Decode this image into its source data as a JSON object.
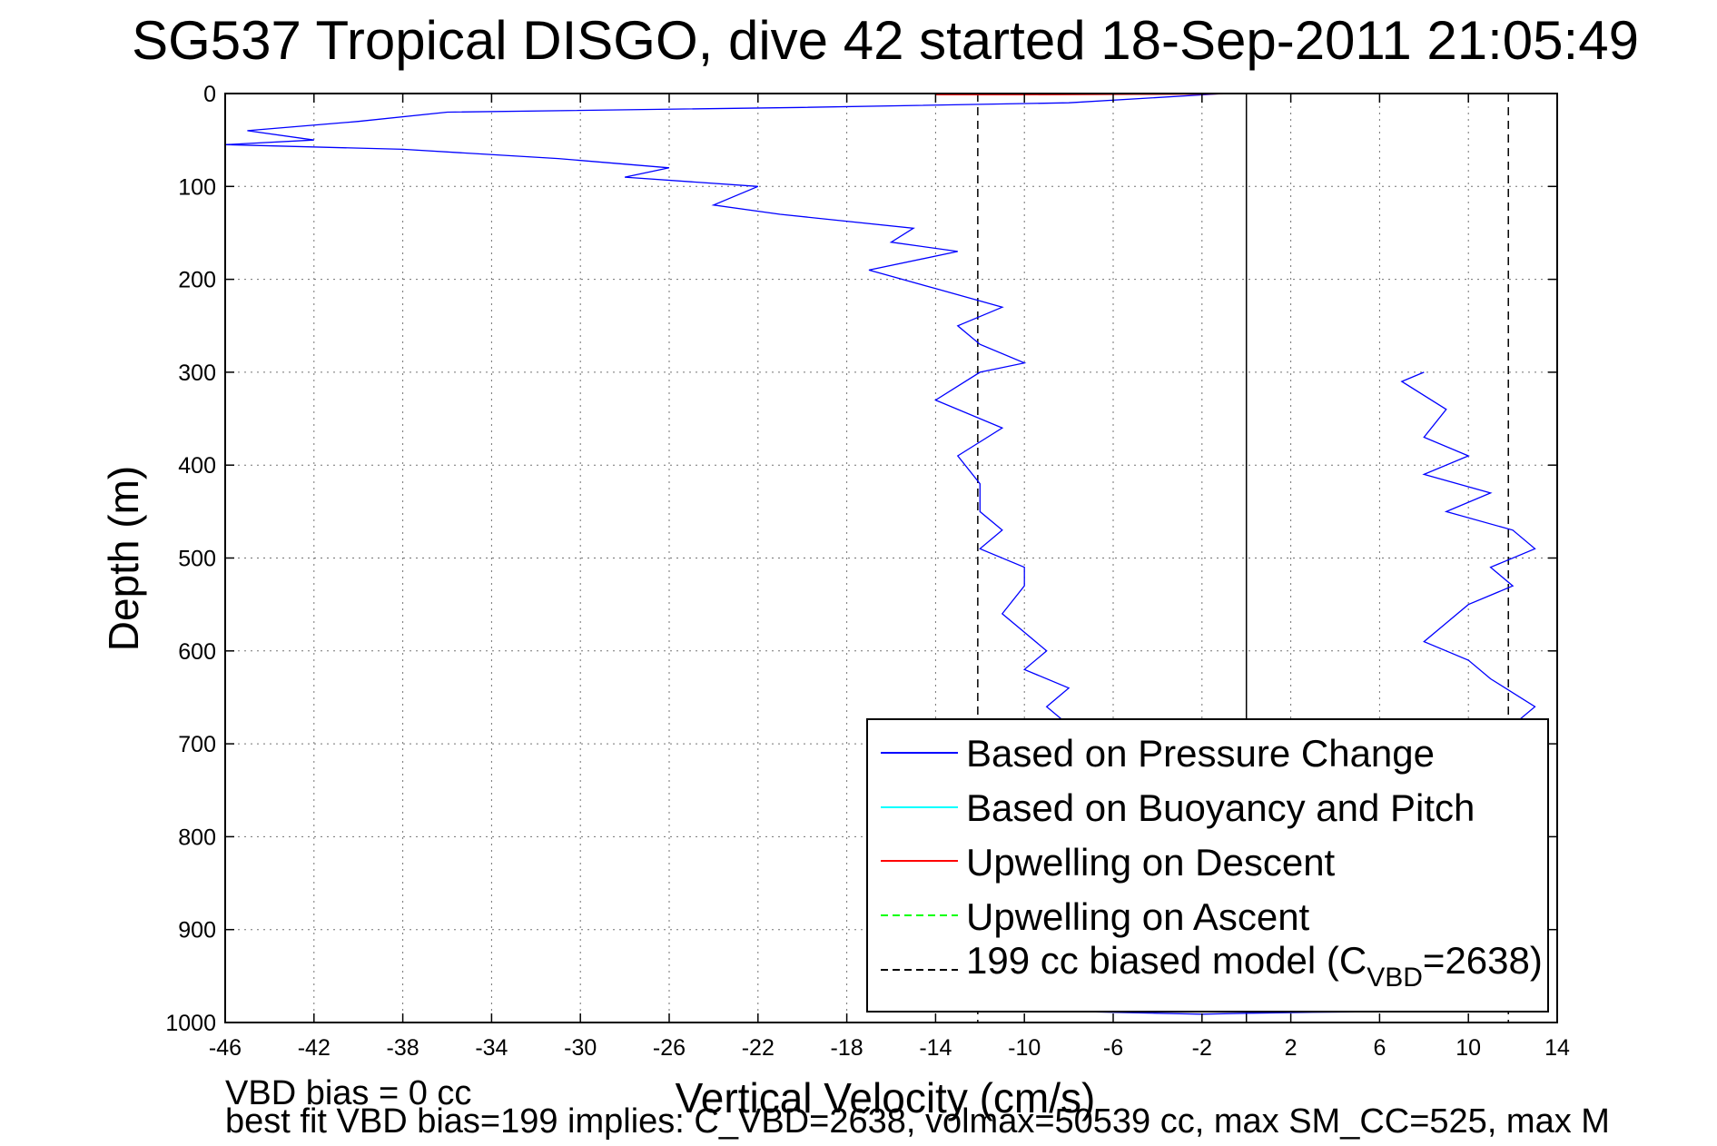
{
  "chart_data": {
    "type": "line",
    "title": "SG537 Tropical DISGO, dive 42 started 18-Sep-2011 21:05:49",
    "xlabel": "Vertical Velocity (cm/s)",
    "ylabel": "Depth (m)",
    "xlim": [
      -46,
      14
    ],
    "ylim": [
      1000,
      0
    ],
    "y_reversed": true,
    "grid": true,
    "legend_position": "bottom-right",
    "xticks": [
      "-46",
      "-42",
      "-38",
      "-34",
      "-30",
      "-26",
      "-22",
      "-18",
      "-14",
      "-10",
      "-6",
      "-2",
      "2",
      "6",
      "10",
      "14"
    ],
    "yticks": [
      "0",
      "100",
      "200",
      "300",
      "400",
      "500",
      "600",
      "700",
      "800",
      "900",
      "1000"
    ],
    "series": [
      {
        "name": "Based on Pressure Change",
        "color": "#0000ff",
        "descent": {
          "x": [
            -1,
            -8,
            -20,
            -36,
            -40,
            -45,
            -42,
            -46,
            -38,
            -31,
            -26,
            -28,
            -22,
            -24,
            -21,
            -15,
            -16,
            -13,
            -17,
            -14,
            -11,
            -13,
            -12,
            -10,
            -12,
            -14,
            -11,
            -13,
            -12,
            -12,
            -11,
            -12,
            -10,
            -10,
            -11,
            -10,
            -9,
            -10,
            -8,
            -9,
            -8
          ],
          "y": [
            0,
            10,
            15,
            20,
            30,
            40,
            50,
            55,
            60,
            70,
            80,
            90,
            100,
            120,
            130,
            145,
            160,
            170,
            190,
            210,
            230,
            250,
            270,
            290,
            300,
            330,
            360,
            390,
            420,
            450,
            470,
            490,
            510,
            530,
            560,
            580,
            600,
            620,
            640,
            660,
            680
          ]
        },
        "ascent": {
          "x": [
            8,
            7,
            9,
            8,
            10,
            8,
            11,
            9,
            12,
            13,
            11,
            12,
            10,
            9,
            8,
            10,
            11,
            13,
            12
          ],
          "y": [
            300,
            310,
            340,
            370,
            390,
            410,
            430,
            450,
            470,
            490,
            510,
            530,
            550,
            570,
            590,
            610,
            630,
            660,
            680
          ]
        },
        "bottom": {
          "x": [
            -8,
            -4,
            -2,
            0,
            3,
            8
          ],
          "y": [
            988,
            990,
            991,
            990,
            989,
            988
          ]
        }
      },
      {
        "name": "Based on Buoyancy and Pitch",
        "color": "#00ffff"
      },
      {
        "name": "Upwelling on Descent",
        "color": "#ff0000",
        "x": [
          -14,
          -10,
          -5,
          -2,
          -1
        ],
        "y": [
          1,
          1,
          0.5,
          0.3,
          0
        ]
      },
      {
        "name": "Upwelling on Ascent",
        "color": "#00ff00"
      },
      {
        "name": "199 cc biased model",
        "legend_label": "199 cc biased model (C",
        "legend_sub": "VBD",
        "legend_tail": "=2638)",
        "color": "#000000",
        "vlines": [
          -12.1,
          11.8
        ]
      }
    ],
    "zero_line_x": 0,
    "footer": {
      "line1": "VBD bias = 0 cc",
      "line2": "best fit VBD bias=199 implies: C_VBD=2638, volmax=50539 cc, max SM_CC=525, max M"
    }
  }
}
